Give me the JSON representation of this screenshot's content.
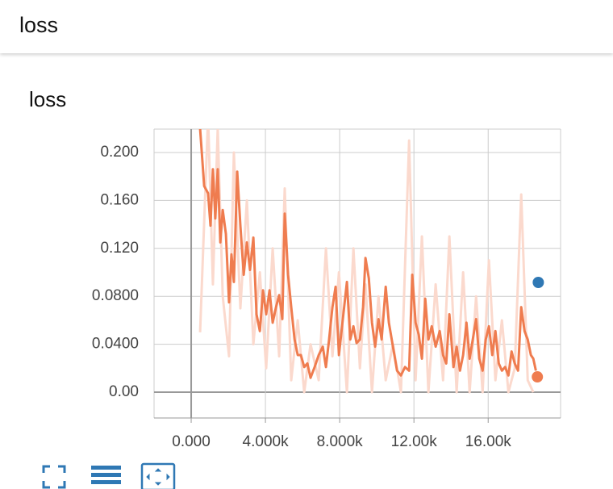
{
  "header": {
    "title": "loss"
  },
  "chart_data": {
    "type": "line",
    "title": "loss",
    "xlim": [
      -2000,
      19900
    ],
    "ylim": [
      -0.0215,
      0.2195
    ],
    "xticks": [
      {
        "value": 0,
        "label": "0.000"
      },
      {
        "value": 4000,
        "label": "4.000k"
      },
      {
        "value": 8000,
        "label": "8.000k"
      },
      {
        "value": 12000,
        "label": "12.00k"
      },
      {
        "value": 16000,
        "label": "16.00k"
      }
    ],
    "yticks": [
      {
        "value": 0,
        "label": "0.00"
      },
      {
        "value": 0.04,
        "label": "0.0400"
      },
      {
        "value": 0.08,
        "label": "0.0800"
      },
      {
        "value": 0.12,
        "label": "0.120"
      },
      {
        "value": 0.16,
        "label": "0.160"
      },
      {
        "value": 0.2,
        "label": "0.200"
      }
    ],
    "grid": true,
    "series": [
      {
        "color": "#fbd9cd",
        "x": [
          480,
          910,
          1170,
          1430,
          1700,
          2040,
          2300,
          2650,
          3000,
          3350,
          3700,
          4040,
          4390,
          4740,
          5040,
          5390,
          5740,
          6090,
          6430,
          6870,
          7260,
          7610,
          7960,
          8390,
          8740,
          9090,
          9390,
          9740,
          10090,
          10480,
          10870,
          11300,
          11740,
          12090,
          12430,
          12780,
          13170,
          13570,
          13910,
          14300,
          14650,
          15000,
          15350,
          15700,
          16040,
          16390,
          16740,
          17090,
          17430,
          17780,
          18130,
          18430
        ],
        "values": [
          0.05,
          0.23,
          0.09,
          0.22,
          0.08,
          0.03,
          0.2,
          0.07,
          0.16,
          0.04,
          0.1,
          0.02,
          0.12,
          0.03,
          0.17,
          0.01,
          0.06,
          0.0,
          0.04,
          0.01,
          0.12,
          0.03,
          0.1,
          0.0,
          0.12,
          0.02,
          0.09,
          0.0,
          0.08,
          0.01,
          0.04,
          0.0,
          0.21,
          0.01,
          0.13,
          0.0,
          0.09,
          0.01,
          0.13,
          0.0,
          0.1,
          0.0,
          0.08,
          0.0,
          0.11,
          0.01,
          0.06,
          0.0,
          0.02,
          0.165,
          0.01,
          0.0
        ]
      },
      {
        "color": "#ef7c4f",
        "x": [
          480,
          700,
          910,
          1040,
          1170,
          1300,
          1430,
          1570,
          1700,
          1870,
          2040,
          2170,
          2300,
          2480,
          2650,
          2830,
          3000,
          3170,
          3350,
          3520,
          3700,
          3870,
          4040,
          4220,
          4390,
          4570,
          4740,
          4910,
          5040,
          5220,
          5390,
          5570,
          5740,
          5910,
          6090,
          6260,
          6430,
          6650,
          6870,
          7090,
          7260,
          7430,
          7610,
          7780,
          7960,
          8170,
          8390,
          8570,
          8740,
          8910,
          9090,
          9260,
          9390,
          9570,
          9740,
          9910,
          10090,
          10260,
          10480,
          10650,
          10870,
          11090,
          11300,
          11520,
          11740,
          11910,
          12090,
          12260,
          12430,
          12610,
          12780,
          12960,
          13170,
          13390,
          13570,
          13740,
          13910,
          14130,
          14300,
          14480,
          14650,
          14830,
          15000,
          15170,
          15350,
          15520,
          15700,
          15870,
          16040,
          16220,
          16390,
          16570,
          16740,
          16910,
          17090,
          17260,
          17430,
          17610,
          17780,
          17960,
          18130,
          18300,
          18430,
          18570
        ],
        "values": [
          0.22,
          0.172,
          0.166,
          0.139,
          0.186,
          0.145,
          0.186,
          0.125,
          0.152,
          0.132,
          0.075,
          0.115,
          0.092,
          0.184,
          0.139,
          0.098,
          0.125,
          0.102,
          0.129,
          0.065,
          0.051,
          0.085,
          0.065,
          0.085,
          0.058,
          0.071,
          0.081,
          0.061,
          0.149,
          0.098,
          0.071,
          0.044,
          0.031,
          0.031,
          0.021,
          0.024,
          0.012,
          0.021,
          0.031,
          0.038,
          0.021,
          0.044,
          0.071,
          0.088,
          0.031,
          0.061,
          0.092,
          0.044,
          0.055,
          0.041,
          0.044,
          0.071,
          0.112,
          0.095,
          0.058,
          0.038,
          0.061,
          0.044,
          0.088,
          0.058,
          0.038,
          0.018,
          0.014,
          0.021,
          0.018,
          0.098,
          0.058,
          0.048,
          0.028,
          0.078,
          0.044,
          0.055,
          0.038,
          0.051,
          0.031,
          0.024,
          0.065,
          0.021,
          0.038,
          0.018,
          0.031,
          0.058,
          0.028,
          0.044,
          0.061,
          0.028,
          0.018,
          0.044,
          0.055,
          0.031,
          0.051,
          0.024,
          0.018,
          0.021,
          0.014,
          0.034,
          0.024,
          0.018,
          0.071,
          0.051,
          0.044,
          0.031,
          0.028,
          0.018
        ]
      }
    ],
    "markers": [
      {
        "x": 18700,
        "value": 0.0916,
        "color": "#2f78b4"
      },
      {
        "x": 18650,
        "value": 0.0128,
        "color": "#ef7c4f"
      }
    ]
  }
}
